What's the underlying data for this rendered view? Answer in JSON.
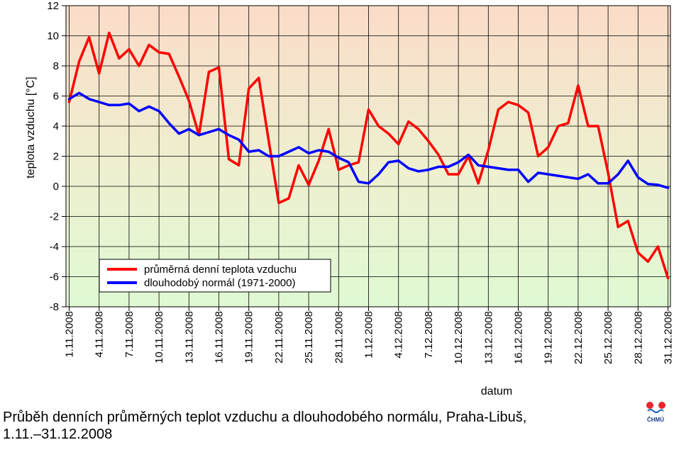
{
  "chart_data": {
    "type": "line",
    "title": "",
    "xlabel": "datum",
    "ylabel": "teplota vzduchu [°C]",
    "ylim": [
      -8,
      12
    ],
    "yticks": [
      -8,
      -6,
      -4,
      -2,
      0,
      2,
      4,
      6,
      8,
      10,
      12
    ],
    "grid": true,
    "legend_position": "bottom-left",
    "background": "vertical gradient from light red-orange (top) to light green (bottom)",
    "categories": [
      "1.11.2008",
      "2.11.2008",
      "3.11.2008",
      "4.11.2008",
      "5.11.2008",
      "6.11.2008",
      "7.11.2008",
      "8.11.2008",
      "9.11.2008",
      "10.11.2008",
      "11.11.2008",
      "12.11.2008",
      "13.11.2008",
      "14.11.2008",
      "15.11.2008",
      "16.11.2008",
      "17.11.2008",
      "18.11.2008",
      "19.11.2008",
      "20.11.2008",
      "21.11.2008",
      "22.11.2008",
      "23.11.2008",
      "24.11.2008",
      "25.11.2008",
      "26.11.2008",
      "27.11.2008",
      "28.11.2008",
      "29.11.2008",
      "30.11.2008",
      "1.12.2008",
      "2.12.2008",
      "3.12.2008",
      "4.12.2008",
      "5.12.2008",
      "6.12.2008",
      "7.12.2008",
      "8.12.2008",
      "9.12.2008",
      "10.12.2008",
      "11.12.2008",
      "12.12.2008",
      "13.12.2008",
      "14.12.2008",
      "15.12.2008",
      "16.12.2008",
      "17.12.2008",
      "18.12.2008",
      "19.12.2008",
      "20.12.2008",
      "21.12.2008",
      "22.12.2008",
      "23.12.2008",
      "24.12.2008",
      "25.12.2008",
      "26.12.2008",
      "27.12.2008",
      "28.12.2008",
      "29.12.2008",
      "30.12.2008",
      "31.12.2008"
    ],
    "tick_labels": [
      "1.11.2008",
      "4.11.2008",
      "7.11.2008",
      "10.11.2008",
      "13.11.2008",
      "16.11.2008",
      "19.11.2008",
      "22.11.2008",
      "25.11.2008",
      "28.11.2008",
      "1.12.2008",
      "4.12.2008",
      "7.12.2008",
      "10.12.2008",
      "13.12.2008",
      "16.12.2008",
      "19.12.2008",
      "22.12.2008",
      "25.12.2008",
      "28.12.2008",
      "31.12.2008"
    ],
    "series": [
      {
        "name": "průměrná denní teplota vzduchu",
        "color": "#ff0000",
        "values": [
          5.6,
          8.3,
          9.9,
          7.5,
          10.2,
          8.5,
          9.1,
          8.0,
          9.4,
          8.9,
          8.8,
          7.3,
          5.7,
          3.4,
          7.6,
          7.9,
          1.8,
          1.4,
          6.5,
          7.2,
          3.0,
          -1.1,
          -0.8,
          1.4,
          0.1,
          1.7,
          3.8,
          1.1,
          1.4,
          1.6,
          5.1,
          4.0,
          3.5,
          2.8,
          4.3,
          3.8,
          3.0,
          2.1,
          0.8,
          0.8,
          2.0,
          0.2,
          2.4,
          5.1,
          5.6,
          5.4,
          4.9,
          2.0,
          2.6,
          4.0,
          4.2,
          6.7,
          4.0,
          4.0,
          0.9,
          -2.7,
          -2.3,
          -4.4,
          -5.0,
          -4.0,
          -6.1
        ]
      },
      {
        "name": "dlouhodobý normál (1971-2000)",
        "color": "#0000ff",
        "values": [
          5.8,
          6.2,
          5.8,
          5.6,
          5.4,
          5.4,
          5.5,
          5.0,
          5.3,
          5.0,
          4.2,
          3.5,
          3.8,
          3.4,
          3.6,
          3.8,
          3.4,
          3.1,
          2.3,
          2.4,
          2.0,
          2.0,
          2.3,
          2.6,
          2.2,
          2.4,
          2.3,
          1.9,
          1.6,
          0.3,
          0.2,
          0.8,
          1.6,
          1.7,
          1.2,
          1.0,
          1.1,
          1.3,
          1.3,
          1.6,
          2.1,
          1.4,
          1.3,
          1.2,
          1.1,
          1.1,
          0.3,
          0.9,
          0.8,
          0.7,
          0.6,
          0.5,
          0.8,
          0.2,
          0.2,
          0.8,
          1.7,
          0.6,
          0.15,
          0.1,
          -0.1
        ]
      }
    ]
  },
  "caption": {
    "line1": "Průběh denních průměrných teplot vzduchu a dlouhodobého normálu, Praha-Libuš,",
    "line2": "1.11.–31.12.2008"
  },
  "logo": {
    "text": "ČHMÚ"
  }
}
